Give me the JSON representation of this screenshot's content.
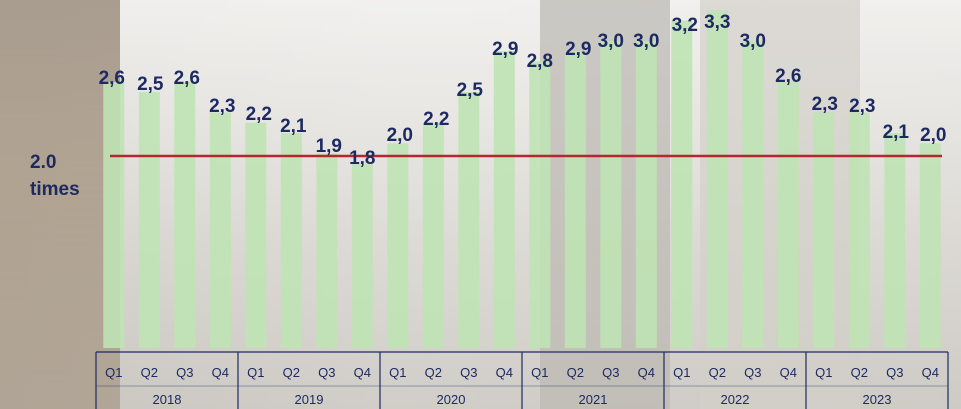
{
  "chart_data": {
    "type": "bar",
    "categories": [
      "Q1",
      "Q2",
      "Q3",
      "Q4",
      "Q1",
      "Q2",
      "Q3",
      "Q4",
      "Q1",
      "Q2",
      "Q3",
      "Q4",
      "Q1",
      "Q2",
      "Q3",
      "Q4",
      "Q1",
      "Q2",
      "Q3",
      "Q4",
      "Q1",
      "Q2",
      "Q3",
      "Q4"
    ],
    "groups": [
      "2018",
      "2019",
      "2020",
      "2021",
      "2022",
      "2023"
    ],
    "values": [
      2.6,
      2.5,
      2.6,
      2.3,
      2.2,
      2.1,
      1.9,
      1.8,
      2.0,
      2.2,
      2.5,
      2.9,
      2.8,
      2.9,
      3.0,
      3.0,
      3.2,
      3.3,
      3.0,
      2.6,
      2.3,
      2.3,
      2.1,
      2.0
    ],
    "value_labels": [
      "2,6",
      "2,5",
      "2,6",
      "2,3",
      "2,2",
      "2,1",
      "1,9",
      "1,8",
      "2,0",
      "2,2",
      "2,5",
      "2,9",
      "2,8",
      "2,9",
      "3,0",
      "3,0",
      "3,2",
      "3,3",
      "3,0",
      "2,6",
      "2,3",
      "2,3",
      "2,1",
      "2,0"
    ],
    "reference_line": {
      "value": 2.0,
      "label_line1": "2.0",
      "label_line2": "times",
      "color": "#b5262e"
    },
    "ylim": [
      0,
      3.4
    ],
    "grid": false,
    "colors": {
      "bar": "#bfe3b4",
      "label": "#1d2a62",
      "axis": "#1d2a62"
    }
  }
}
